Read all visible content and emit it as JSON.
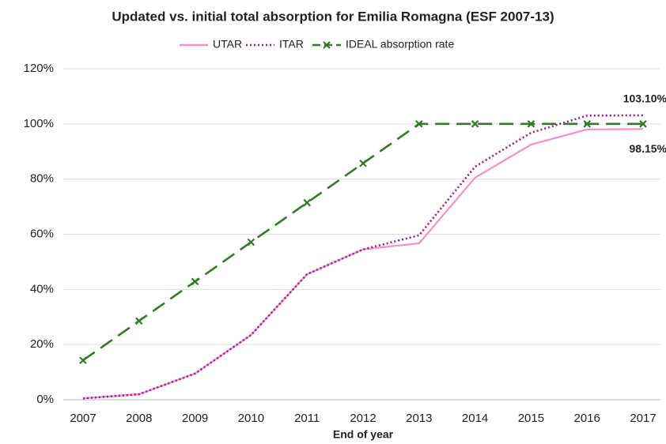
{
  "chart_data": {
    "type": "line",
    "title": "Updated vs. initial total absorption for Emilia Romagna (ESF 2007-13)",
    "x_label": "End of year",
    "categories": [
      "2007",
      "2008",
      "2009",
      "2010",
      "2011",
      "2012",
      "2013",
      "2014",
      "2015",
      "2016",
      "2017"
    ],
    "series": [
      {
        "name": "UTAR",
        "color": "#f58fc9",
        "style": "solid",
        "values": [
          0.5,
          2,
          9.5,
          23.5,
          45.5,
          54.5,
          56.7,
          80.5,
          92.5,
          98,
          98.15
        ],
        "value_labels": [
          null,
          null,
          null,
          null,
          null,
          null,
          null,
          null,
          null,
          null,
          "98.15%"
        ]
      },
      {
        "name": "ITAR",
        "color": "#a3168e",
        "style": "dotted",
        "values": [
          0.5,
          2,
          9.5,
          23.5,
          45.5,
          54.5,
          59.6,
          84.5,
          96.8,
          103,
          103.1
        ],
        "value_labels": [
          null,
          null,
          null,
          null,
          null,
          null,
          null,
          null,
          null,
          null,
          "103.10%"
        ]
      },
      {
        "name": "IDEAL absorption rate",
        "color": "#2f7d22",
        "style": "dashed",
        "marker": "x",
        "values": [
          14.29,
          28.57,
          42.86,
          57.14,
          71.43,
          85.71,
          100,
          100,
          100,
          100,
          100
        ]
      }
    ],
    "ylim": [
      0,
      120
    ],
    "yticks": [
      {
        "value": 0,
        "label": "0%"
      },
      {
        "value": 20,
        "label": "20%"
      },
      {
        "value": 40,
        "label": "40%"
      },
      {
        "value": 60,
        "label": "60%"
      },
      {
        "value": 80,
        "label": "80%"
      },
      {
        "value": 100,
        "label": "100%"
      },
      {
        "value": 120,
        "label": "120%"
      }
    ],
    "grid": true,
    "legend": "top"
  }
}
